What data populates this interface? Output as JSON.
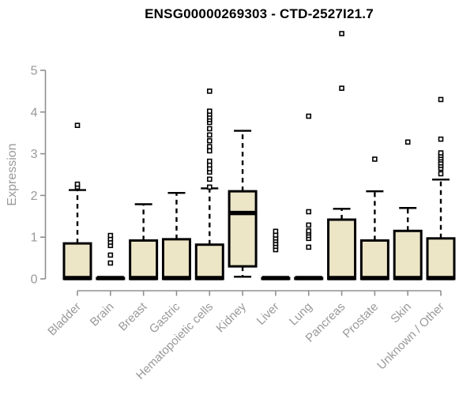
{
  "header": {
    "title": "ENSG00000269303 - CTD-2527I21.7"
  },
  "chart_data": {
    "type": "boxplot",
    "title": "ENSG00000269303 - CTD-2527I21.7",
    "xlabel": "",
    "ylabel": "Expression",
    "ylim": [
      0,
      5.9
    ],
    "yticks": [
      0,
      1,
      2,
      3,
      4,
      5
    ],
    "grid": false,
    "legend": "none",
    "categories": [
      "Bladder",
      "Brain",
      "Breast",
      "Gastric",
      "Hematopoietic cells",
      "Kidney",
      "Liver",
      "Lung",
      "Pancreas",
      "Prostate",
      "Skin",
      "Unknown / Other"
    ],
    "series": [
      {
        "category": "Bladder",
        "low": 0,
        "q1": 0,
        "median": 0.02,
        "q3": 0.85,
        "high": 2.13,
        "outliers": [
          2.2,
          2.27,
          3.68
        ]
      },
      {
        "category": "Brain",
        "low": 0,
        "q1": 0,
        "median": 0.02,
        "q3": 0.02,
        "high": 0.02,
        "outliers": [
          0.38,
          0.57,
          0.8,
          0.88,
          0.96,
          1.04
        ]
      },
      {
        "category": "Breast",
        "low": 0,
        "q1": 0,
        "median": 0.02,
        "q3": 0.92,
        "high": 1.79,
        "outliers": []
      },
      {
        "category": "Gastric",
        "low": 0,
        "q1": 0,
        "median": 0.02,
        "q3": 0.95,
        "high": 2.06,
        "outliers": []
      },
      {
        "category": "Hematopoietic cells",
        "low": 0,
        "q1": 0,
        "median": 0.02,
        "q3": 0.82,
        "high": 2.17,
        "outliers": [
          2.2,
          2.39,
          2.56,
          2.64,
          2.73,
          2.82,
          3.07,
          3.17,
          3.31,
          3.45,
          3.6,
          3.75,
          3.82,
          3.88,
          3.95,
          4.02,
          4.5
        ]
      },
      {
        "category": "Kidney",
        "low": 0.05,
        "q1": 0.3,
        "median": 1.58,
        "q3": 2.1,
        "high": 3.55,
        "outliers": []
      },
      {
        "category": "Liver",
        "low": 0,
        "q1": 0,
        "median": 0.02,
        "q3": 0.02,
        "high": 0.02,
        "outliers": [
          0.7,
          0.78,
          0.85,
          0.92,
          0.98,
          1.05,
          1.14
        ]
      },
      {
        "category": "Lung",
        "low": 0,
        "q1": 0,
        "median": 0.02,
        "q3": 0.02,
        "high": 0.02,
        "outliers": [
          0.76,
          0.97,
          1.04,
          1.1,
          1.15,
          1.29,
          1.61,
          3.9
        ]
      },
      {
        "category": "Pancreas",
        "low": 0,
        "q1": 0,
        "median": 0.02,
        "q3": 1.42,
        "high": 1.68,
        "outliers": [
          4.57,
          5.88
        ]
      },
      {
        "category": "Prostate",
        "low": 0,
        "q1": 0,
        "median": 0.02,
        "q3": 0.92,
        "high": 2.1,
        "outliers": [
          2.87
        ]
      },
      {
        "category": "Skin",
        "low": 0,
        "q1": 0,
        "median": 0.02,
        "q3": 1.15,
        "high": 1.7,
        "outliers": [
          3.28
        ]
      },
      {
        "category": "Unknown / Other",
        "low": 0,
        "q1": 0,
        "median": 0.02,
        "q3": 0.97,
        "high": 2.38,
        "outliers": [
          2.52,
          2.65,
          2.72,
          2.78,
          2.85,
          2.9,
          2.96,
          3.02,
          3.35,
          4.3
        ]
      }
    ],
    "colors": {
      "box_fill": "#ECE5C6",
      "box_stroke": "#000000",
      "median": "#000000",
      "whisker": "#000000",
      "outlier_stroke": "#000000",
      "outlier_fill": "#ffffff",
      "axis_line": "#909090",
      "tick_label": "#999999",
      "axis_title": "#999999",
      "title": "#000000",
      "background": "#ffffff"
    }
  }
}
